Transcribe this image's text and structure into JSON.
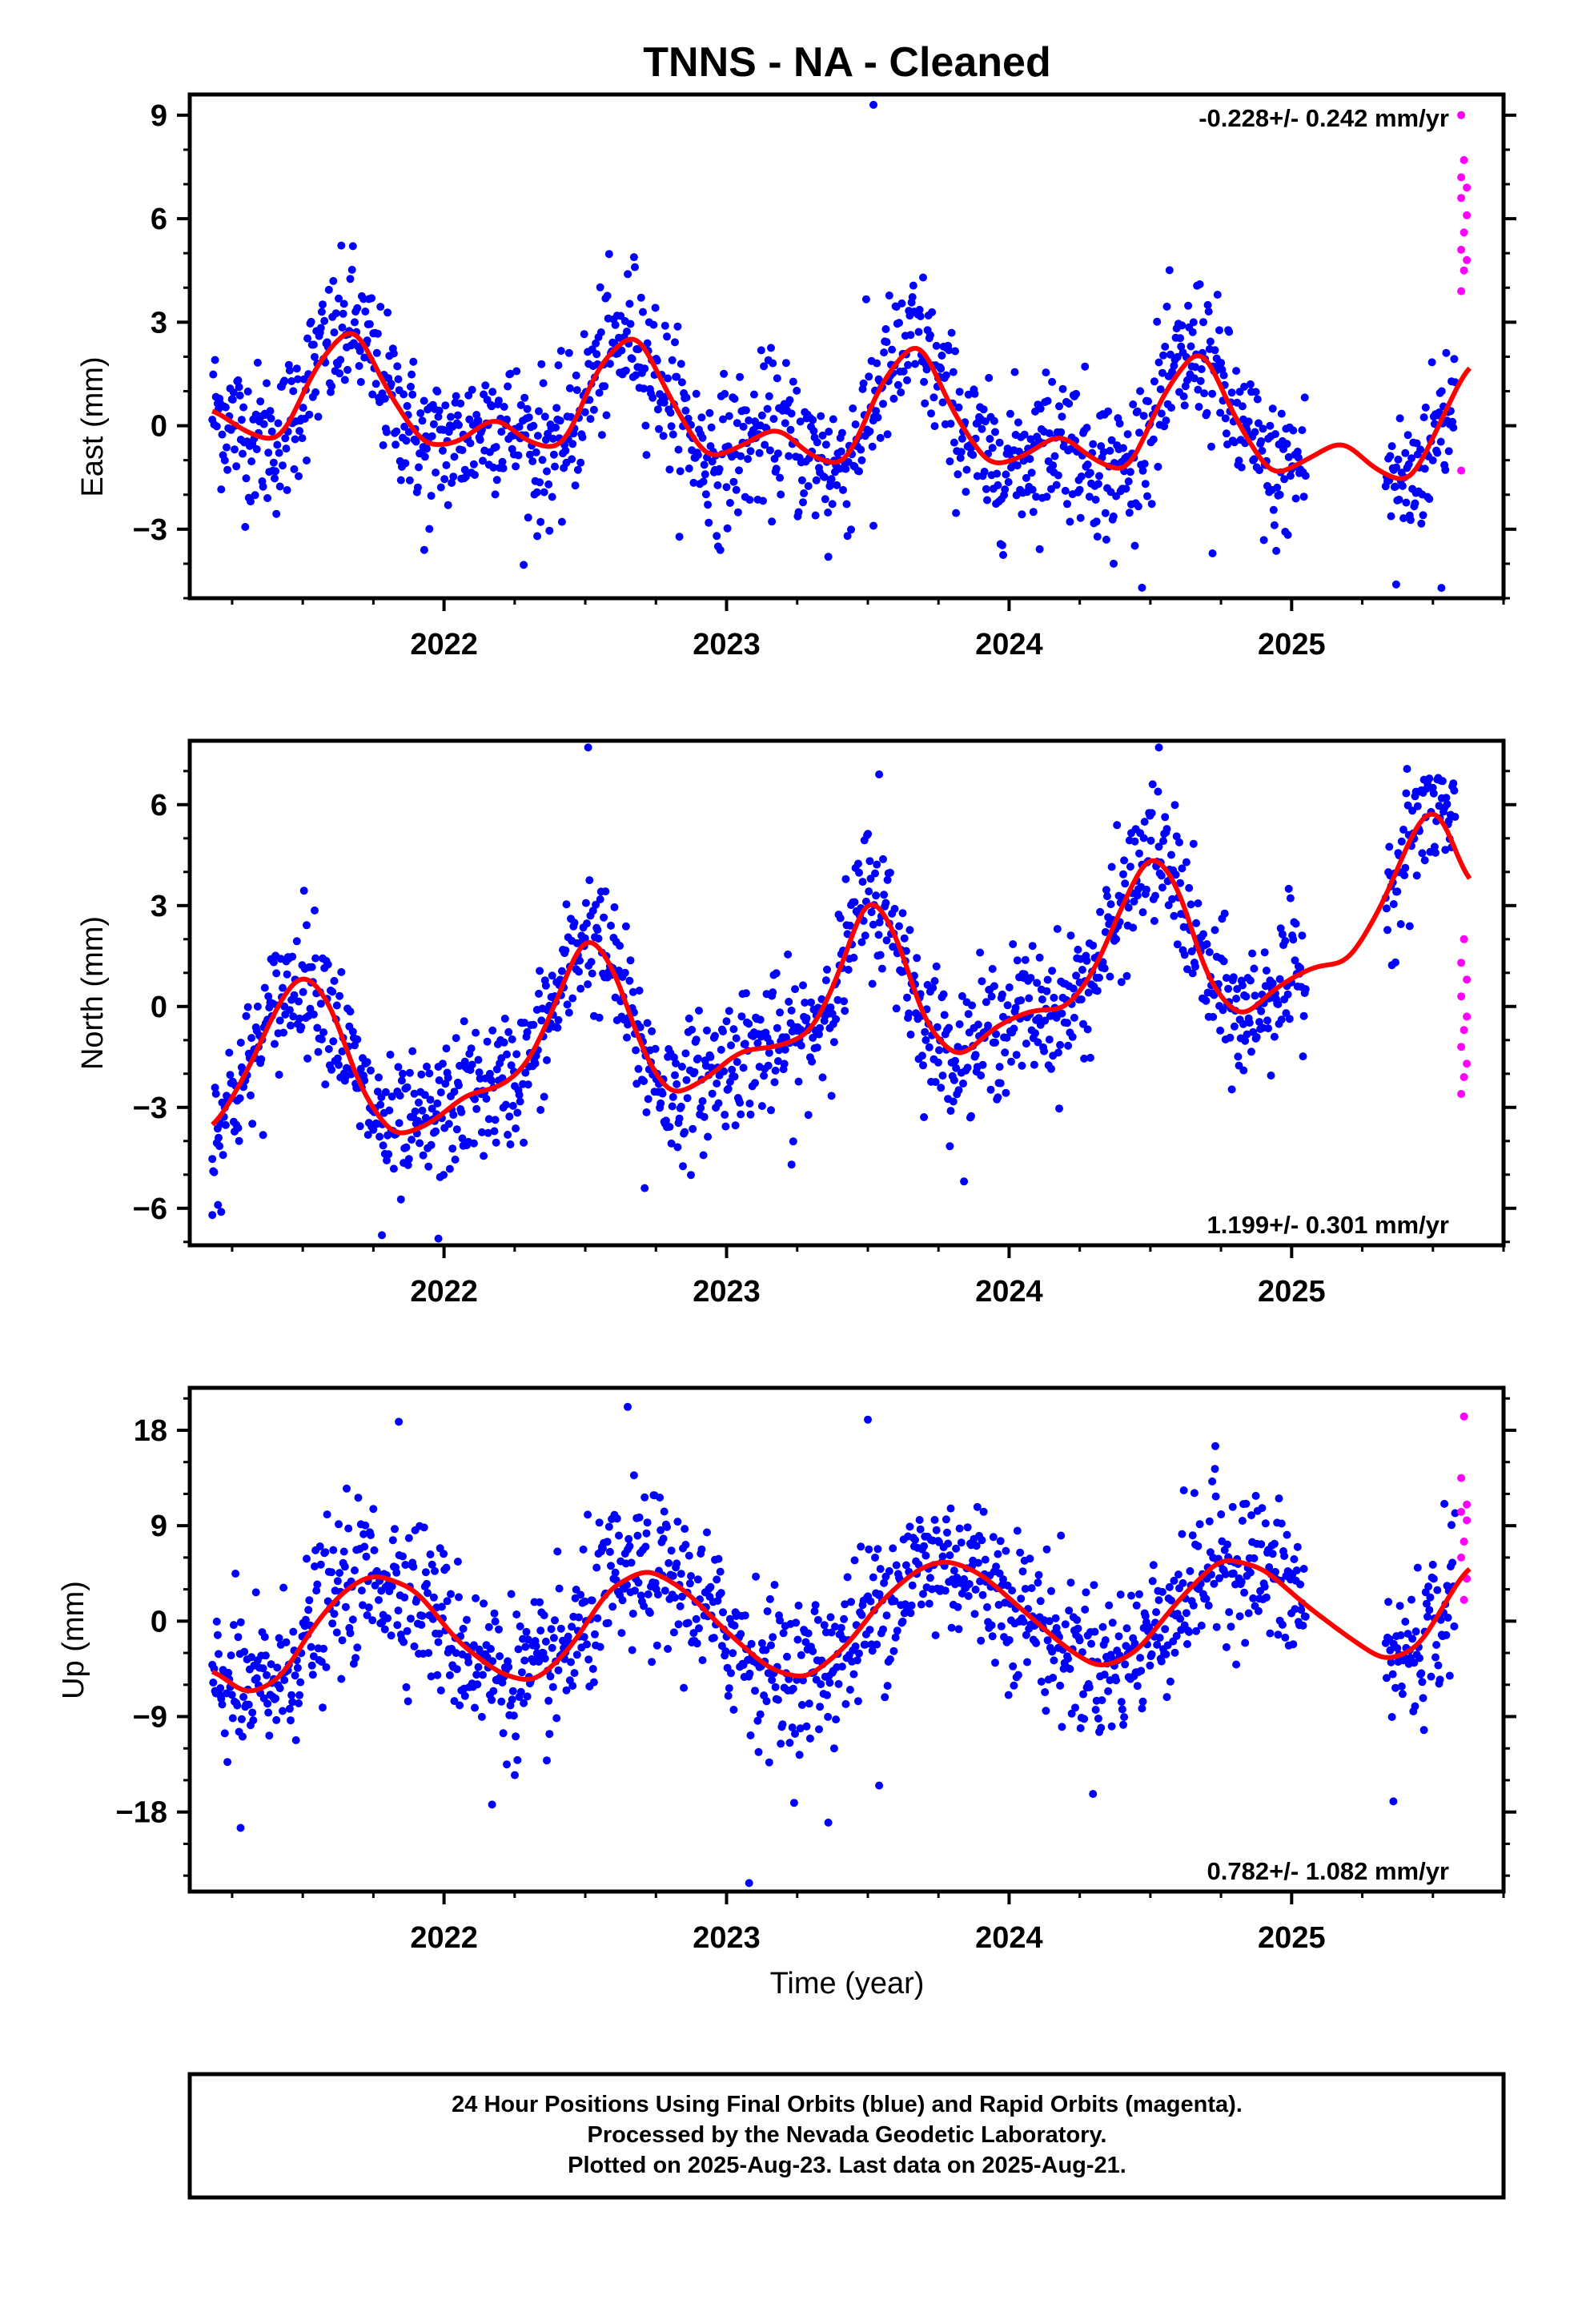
{
  "title": "TNNS  - NA - Cleaned",
  "xlabel": "Time (year)",
  "footer": [
    "24 Hour Positions Using Final Orbits (blue) and Rapid Orbits (magenta).",
    "Processed by the Nevada Geodetic Laboratory.",
    "Plotted on 2025-Aug-23. Last data on 2025-Aug-21."
  ],
  "colors": {
    "final": "#0000ff",
    "rapid": "#ff00ff",
    "model": "#ff0000",
    "frame": "#000000"
  },
  "chart_data": [
    {
      "type": "scatter",
      "component": "east",
      "ylabel": "East (mm)",
      "rate_text": "-0.228+/- 0.242 mm/yr",
      "rate_position": "top-right",
      "xlim": [
        2021.1,
        2025.75
      ],
      "ylim": [
        -5,
        9.6
      ],
      "x_ticks": [
        "2022",
        "2023",
        "2024",
        "2025"
      ],
      "y_ticks": [
        "-3",
        "0",
        "3",
        "6",
        "9"
      ],
      "y_tick_values": [
        -3,
        0,
        3,
        6,
        9
      ],
      "grid": false,
      "series": [
        {
          "role": "final_orbits",
          "color": "#0000ff",
          "x_range": [
            2021.18,
            2025.58
          ],
          "points": "dense daily positions, std ~1 mm about seasonal model",
          "outliers": [
            [
              2021.93,
              -3.6
            ],
            [
              2022.33,
              -3.2
            ],
            [
              2022.97,
              -3.5
            ],
            [
              2023.36,
              -3.8
            ],
            [
              2023.52,
              9.3
            ],
            [
              2023.52,
              -2.9
            ],
            [
              2024.37,
              -4.0
            ],
            [
              2024.72,
              -3.7
            ],
            [
              2025.37,
              -4.6
            ],
            [
              2025.53,
              -4.7
            ]
          ]
        },
        {
          "role": "rapid_orbits",
          "color": "#ff00ff",
          "points": [
            [
              2025.6,
              9.0
            ],
            [
              2025.61,
              7.7
            ],
            [
              2025.6,
              7.2
            ],
            [
              2025.62,
              6.9
            ],
            [
              2025.6,
              6.6
            ],
            [
              2025.62,
              6.1
            ],
            [
              2025.61,
              5.6
            ],
            [
              2025.6,
              5.1
            ],
            [
              2025.62,
              4.8
            ],
            [
              2025.61,
              4.5
            ],
            [
              2025.6,
              3.9
            ],
            [
              2025.6,
              -1.3
            ]
          ]
        },
        {
          "role": "model_fit",
          "color": "#ff0000",
          "style": "line",
          "x": [
            2021.18,
            2021.3,
            2021.42,
            2021.55,
            2021.68,
            2021.8,
            2021.93,
            2022.05,
            2022.18,
            2022.3,
            2022.42,
            2022.55,
            2022.68,
            2022.8,
            2022.93,
            2023.05,
            2023.18,
            2023.3,
            2023.42,
            2023.55,
            2023.68,
            2023.8,
            2023.93,
            2024.05,
            2024.18,
            2024.3,
            2024.42,
            2024.55,
            2024.68,
            2024.8,
            2024.93,
            2025.05,
            2025.18,
            2025.3,
            2025.42,
            2025.55,
            2025.63
          ],
          "y": [
            0.5,
            -0.2,
            -0.5,
            1.8,
            3.0,
            1.0,
            -0.6,
            -0.5,
            0.3,
            -0.5,
            -0.7,
            1.8,
            2.8,
            0.8,
            -1.0,
            -0.6,
            0.0,
            -0.9,
            -1.2,
            1.3,
            2.6,
            0.4,
            -1.2,
            -0.9,
            -0.2,
            -1.0,
            -1.4,
            1.0,
            2.4,
            0.2,
            -1.5,
            -1.0,
            -0.4,
            -1.3,
            -1.7,
            0.5,
            1.9
          ]
        }
      ]
    },
    {
      "type": "scatter",
      "component": "north",
      "ylabel": "North (mm)",
      "rate_text": "1.199+/- 0.301 mm/yr",
      "rate_position": "bottom-right",
      "xlim": [
        2021.1,
        2025.75
      ],
      "ylim": [
        -7.1,
        7.9
      ],
      "x_ticks": [
        "2022",
        "2023",
        "2024",
        "2025"
      ],
      "y_ticks": [
        "-6",
        "-3",
        "0",
        "3",
        "6"
      ],
      "y_tick_values": [
        -6,
        -3,
        0,
        3,
        6
      ],
      "grid": false,
      "series": [
        {
          "role": "final_orbits",
          "color": "#0000ff",
          "x_range": [
            2021.18,
            2025.58
          ],
          "points": "dense daily positions, std ~1 mm about seasonal model",
          "outliers": [
            [
              2021.18,
              -6.2
            ],
            [
              2021.2,
              -5.9
            ],
            [
              2021.78,
              -6.8
            ],
            [
              2021.98,
              -6.9
            ],
            [
              2022.71,
              -5.4
            ],
            [
              2022.51,
              7.7
            ],
            [
              2023.54,
              6.9
            ],
            [
              2024.53,
              7.7
            ],
            [
              2023.23,
              -4.7
            ],
            [
              2024.83,
              -1.9
            ]
          ]
        },
        {
          "role": "rapid_orbits",
          "color": "#ff00ff",
          "points": [
            [
              2025.61,
              2.0
            ],
            [
              2025.6,
              1.3
            ],
            [
              2025.62,
              0.8
            ],
            [
              2025.6,
              0.3
            ],
            [
              2025.62,
              -0.3
            ],
            [
              2025.61,
              -0.7
            ],
            [
              2025.6,
              -1.2
            ],
            [
              2025.62,
              -1.7
            ],
            [
              2025.61,
              -2.1
            ],
            [
              2025.6,
              -2.6
            ]
          ]
        },
        {
          "role": "model_fit",
          "color": "#ff0000",
          "style": "line",
          "x": [
            2021.18,
            2021.3,
            2021.42,
            2021.5,
            2021.6,
            2021.7,
            2021.82,
            2021.95,
            2022.08,
            2022.2,
            2022.3,
            2022.4,
            2022.5,
            2022.6,
            2022.7,
            2022.8,
            2022.92,
            2023.05,
            2023.18,
            2023.3,
            2023.4,
            2023.5,
            2023.6,
            2023.7,
            2023.82,
            2023.95,
            2024.08,
            2024.2,
            2024.3,
            2024.4,
            2024.5,
            2024.6,
            2024.7,
            2024.82,
            2024.95,
            2025.08,
            2025.2,
            2025.32,
            2025.45,
            2025.52,
            2025.63
          ],
          "y": [
            -3.7,
            -2.0,
            0.2,
            1.1,
            0.1,
            -2.4,
            -3.9,
            -3.5,
            -2.6,
            -2.4,
            -1.7,
            0.2,
            2.3,
            1.2,
            -1.3,
            -2.7,
            -2.2,
            -1.3,
            -1.2,
            -0.8,
            1.0,
            3.5,
            2.2,
            -0.5,
            -1.6,
            -0.6,
            -0.1,
            -0.1,
            1.0,
            3.0,
            4.7,
            3.6,
            0.8,
            -0.4,
            0.6,
            1.2,
            1.3,
            3.0,
            5.6,
            6.0,
            3.5
          ]
        }
      ]
    },
    {
      "type": "scatter",
      "component": "up",
      "ylabel": "Up (mm)",
      "rate_text": "0.782+/- 1.082 mm/yr",
      "rate_position": "bottom-right",
      "xlim": [
        2021.1,
        2025.75
      ],
      "ylim": [
        -25.5,
        22
      ],
      "x_ticks": [
        "2022",
        "2023",
        "2024",
        "2025"
      ],
      "y_ticks": [
        "-18",
        "-9",
        "0",
        "9",
        "18"
      ],
      "y_tick_values": [
        -18,
        -9,
        0,
        9,
        18
      ],
      "grid": false,
      "series": [
        {
          "role": "final_orbits",
          "color": "#0000ff",
          "x_range": [
            2021.18,
            2025.58
          ],
          "points": "dense daily positions, std ~3.5 mm about seasonal model",
          "outliers": [
            [
              2021.28,
              -19.5
            ],
            [
              2021.84,
              18.8
            ],
            [
              2022.17,
              -17.3
            ],
            [
              2022.65,
              20.2
            ],
            [
              2023.08,
              -24.7
            ],
            [
              2023.36,
              -19.0
            ],
            [
              2023.5,
              19.0
            ],
            [
              2023.54,
              -15.5
            ],
            [
              2024.73,
              16.5
            ],
            [
              2025.36,
              -17.0
            ]
          ]
        },
        {
          "role": "rapid_orbits",
          "color": "#ff00ff",
          "points": [
            [
              2025.61,
              19.3
            ],
            [
              2025.6,
              13.5
            ],
            [
              2025.62,
              11.0
            ],
            [
              2025.6,
              10.3
            ],
            [
              2025.62,
              9.5
            ],
            [
              2025.61,
              7.5
            ],
            [
              2025.6,
              6.0
            ],
            [
              2025.62,
              4.0
            ],
            [
              2025.61,
              2.0
            ]
          ]
        },
        {
          "role": "model_fit",
          "color": "#ff0000",
          "style": "line",
          "x": [
            2021.18,
            2021.3,
            2021.42,
            2021.55,
            2021.65,
            2021.75,
            2021.9,
            2022.05,
            2022.2,
            2022.32,
            2022.45,
            2022.58,
            2022.72,
            2022.85,
            2023.0,
            2023.15,
            2023.28,
            2023.42,
            2023.55,
            2023.68,
            2023.78,
            2023.9,
            2024.05,
            2024.2,
            2024.32,
            2024.45,
            2024.6,
            2024.75,
            2024.9,
            2025.05,
            2025.2,
            2025.33,
            2025.45,
            2025.55,
            2025.63
          ],
          "y": [
            -4.5,
            -7.0,
            -5.5,
            0.0,
            3.0,
            4.5,
            3.0,
            -2.0,
            -5.0,
            -5.8,
            -2.5,
            3.0,
            5.0,
            3.0,
            -1.0,
            -4.5,
            -5.5,
            -2.5,
            2.0,
            5.0,
            5.8,
            4.5,
            1.0,
            -2.5,
            -4.5,
            -3.0,
            2.0,
            6.0,
            5.0,
            1.5,
            -1.5,
            -3.8,
            -2.5,
            2.0,
            5.5
          ]
        }
      ]
    }
  ]
}
